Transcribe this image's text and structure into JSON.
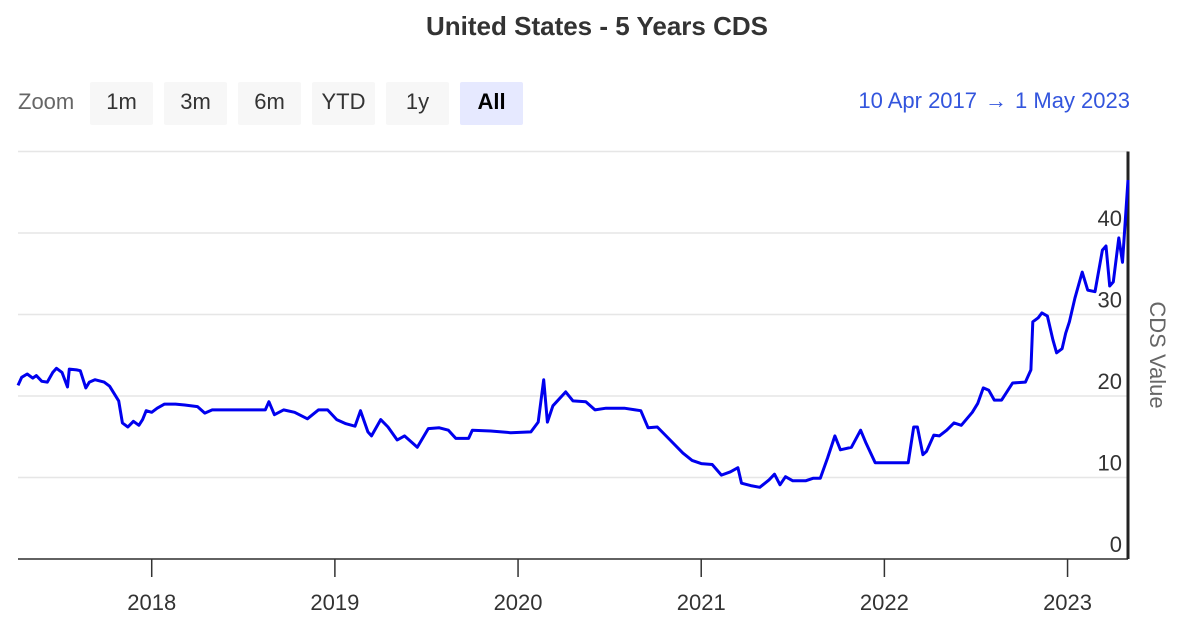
{
  "chart_data": {
    "type": "line",
    "title": "United States - 5 Years CDS",
    "range_selector": {
      "label": "Zoom",
      "buttons": [
        "1m",
        "3m",
        "6m",
        "YTD",
        "1y",
        "All"
      ],
      "selected": 5
    },
    "date_range": {
      "from": "10 Apr 2017",
      "separator": "→",
      "to": "1 May 2023"
    },
    "y_axis_label": "CDS Value",
    "xlim": [
      2017.27,
      2023.33
    ],
    "xticks": [
      2018,
      2019,
      2020,
      2021,
      2022,
      2023
    ],
    "ylim": [
      0,
      50
    ],
    "yticks": [
      0,
      10,
      20,
      30,
      40
    ],
    "grid": true,
    "y_axis_side": "right",
    "series": [
      {
        "name": "CDS Value",
        "color": "#0000ee",
        "x": [
          2017.27,
          2017.29,
          2017.32,
          2017.35,
          2017.37,
          2017.4,
          2017.43,
          2017.46,
          2017.48,
          2017.51,
          2017.54,
          2017.55,
          2017.59,
          2017.61,
          2017.64,
          2017.66,
          2017.69,
          2017.74,
          2017.77,
          2017.82,
          2017.84,
          2017.87,
          2017.9,
          2017.93,
          2017.95,
          2017.97,
          2018.0,
          2018.03,
          2018.07,
          2018.13,
          2018.18,
          2018.25,
          2018.29,
          2018.33,
          2018.43,
          2018.62,
          2018.64,
          2018.67,
          2018.72,
          2018.78,
          2018.85,
          2018.91,
          2018.96,
          2019.01,
          2019.06,
          2019.11,
          2019.14,
          2019.18,
          2019.2,
          2019.25,
          2019.29,
          2019.34,
          2019.38,
          2019.45,
          2019.51,
          2019.57,
          2019.62,
          2019.66,
          2019.73,
          2019.75,
          2019.85,
          2019.96,
          2020.07,
          2020.11,
          2020.14,
          2020.16,
          2020.19,
          2020.26,
          2020.3,
          2020.37,
          2020.42,
          2020.48,
          2020.58,
          2020.64,
          2020.67,
          2020.71,
          2020.76,
          2020.83,
          2020.9,
          2020.95,
          2021.0,
          2021.06,
          2021.11,
          2021.16,
          2021.2,
          2021.22,
          2021.27,
          2021.32,
          2021.37,
          2021.4,
          2021.43,
          2021.46,
          2021.5,
          2021.57,
          2021.61,
          2021.65,
          2021.69,
          2021.73,
          2021.76,
          2021.82,
          2021.87,
          2021.9,
          2021.95,
          2022.03,
          2022.13,
          2022.16,
          2022.18,
          2022.21,
          2022.23,
          2022.27,
          2022.3,
          2022.34,
          2022.38,
          2022.42,
          2022.48,
          2022.51,
          2022.54,
          2022.57,
          2022.6,
          2022.64,
          2022.7,
          2022.77,
          2022.8,
          2022.81,
          2022.84,
          2022.86,
          2022.89,
          2022.92,
          2022.94,
          2022.97,
          2022.99,
          2023.01,
          2023.04,
          2023.08,
          2023.11,
          2023.15,
          2023.19,
          2023.21,
          2023.23,
          2023.25,
          2023.28,
          2023.3,
          2023.33
        ],
        "values": [
          21.3,
          22.3,
          22.7,
          22.2,
          22.5,
          21.8,
          21.7,
          22.9,
          23.4,
          22.9,
          21.1,
          23.3,
          23.2,
          23.1,
          21.0,
          21.7,
          22.0,
          21.7,
          21.2,
          19.4,
          16.7,
          16.2,
          16.9,
          16.4,
          17.1,
          18.2,
          18.0,
          18.5,
          19.0,
          19.0,
          18.9,
          18.7,
          17.9,
          18.3,
          18.3,
          18.3,
          19.3,
          17.7,
          18.3,
          18.0,
          17.2,
          18.3,
          18.3,
          17.1,
          16.6,
          16.3,
          18.2,
          15.6,
          15.1,
          17.1,
          16.2,
          14.6,
          15.1,
          13.7,
          16.0,
          16.1,
          15.8,
          14.8,
          14.8,
          15.8,
          15.7,
          15.5,
          15.6,
          16.8,
          22.0,
          16.8,
          18.8,
          20.5,
          19.4,
          19.3,
          18.3,
          18.5,
          18.5,
          18.3,
          18.2,
          16.1,
          16.2,
          14.6,
          13.0,
          12.1,
          11.7,
          11.6,
          10.3,
          10.7,
          11.2,
          9.3,
          9.0,
          8.8,
          9.7,
          10.4,
          9.1,
          10.1,
          9.6,
          9.6,
          9.9,
          9.9,
          12.4,
          15.1,
          13.4,
          13.7,
          15.8,
          14.2,
          11.8,
          11.8,
          11.8,
          16.2,
          16.2,
          12.8,
          13.2,
          15.2,
          15.1,
          15.8,
          16.7,
          16.4,
          18.0,
          19.1,
          21.0,
          20.7,
          19.5,
          19.5,
          21.6,
          21.7,
          23.2,
          29.1,
          29.6,
          30.2,
          29.8,
          26.9,
          25.3,
          25.8,
          27.7,
          29.1,
          32.0,
          35.2,
          33.0,
          32.8,
          37.9,
          38.4,
          33.5,
          34.0,
          39.4,
          36.4,
          46.5
        ]
      }
    ]
  }
}
